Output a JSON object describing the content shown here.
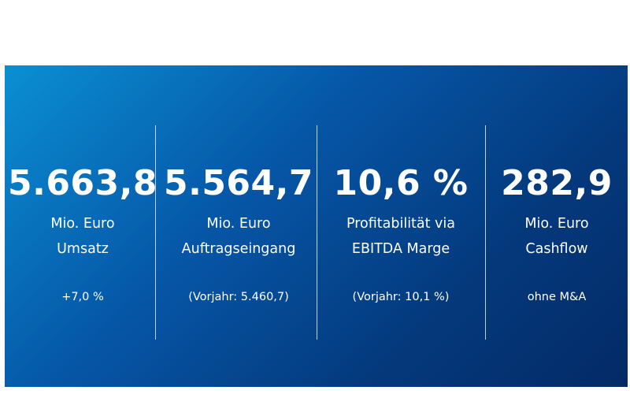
{
  "kpis": [
    {
      "value": "5.663,8",
      "label_line1": "Mio. Euro",
      "label_line2": "Umsatz",
      "note": "+7,0 %"
    },
    {
      "value": "5.564,7",
      "label_line1": "Mio. Euro",
      "label_line2": "Auftragseingang",
      "note": "(Vorjahr: 5.460,7)"
    },
    {
      "value": "10,6 %",
      "label_line1": "Profitabilität via",
      "label_line2": "EBITDA Marge",
      "note": "(Vorjahr: 10,1 %)"
    },
    {
      "value": "282,9",
      "label_line1": "Mio. Euro",
      "label_line2": "Cashflow",
      "note": "ohne M&A"
    }
  ],
  "colors": {
    "banner_gradient_start": "#0a8fd3",
    "banner_gradient_end": "#032a66",
    "text": "#ffffff"
  }
}
